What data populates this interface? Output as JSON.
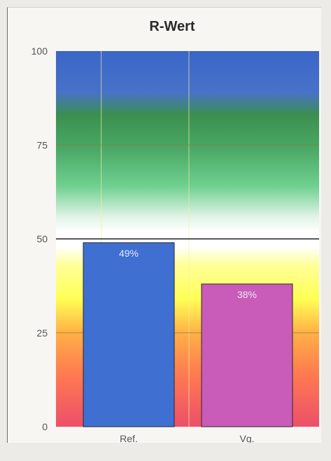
{
  "chart_data": {
    "type": "bar",
    "title": "R-Wert",
    "categories": [
      "Ref.",
      "Vg."
    ],
    "values": [
      49,
      38
    ],
    "data_labels": [
      "49%",
      "38%"
    ],
    "bar_colors": [
      "#3f6fd0",
      "#c85cb8"
    ],
    "ylim": [
      0,
      100
    ],
    "yticks": [
      0,
      25,
      50,
      75,
      100
    ],
    "reference_line": 50,
    "background_bands": [
      {
        "from": 0,
        "to": 50,
        "colors": [
          "#e8506a",
          "#ff9a44",
          "#ffff66",
          "#ffffff"
        ]
      },
      {
        "from": 50,
        "to": 100,
        "colors": [
          "#ffffff",
          "#5bc88a",
          "#3b8f4f",
          "#3a66c8"
        ]
      }
    ],
    "xlabel": "",
    "ylabel": "",
    "legend": "none"
  }
}
